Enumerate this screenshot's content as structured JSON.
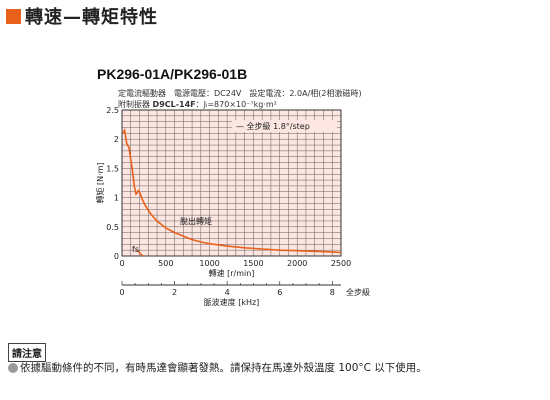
{
  "heading": {
    "text": "轉速—轉矩特性",
    "accent_color": "#e8611a"
  },
  "model": "PK296-01A/PK296-01B",
  "conditions": {
    "line1": "定電流驅動器　電源電壓：DC24V　設定電流：2.0A/相(2相激磁時)",
    "line2_prefix": "附制振器 ",
    "line2_model": "D9CL-14F",
    "line2_suffix": "：Jₗ=870×10⁻⁷kg·m²"
  },
  "chart_data": {
    "type": "line",
    "ylabel": "轉矩 [N·m]",
    "xlabel": "轉速 [r/min]",
    "x2label": "脈波速度 [kHz]",
    "x2unit_label": "全步級",
    "xlim": [
      0,
      2500
    ],
    "ylim": [
      0,
      2.5
    ],
    "x2lim": [
      0,
      8.33
    ],
    "xticks": [
      0,
      500,
      1000,
      1500,
      2000,
      2500
    ],
    "yticks": [
      0,
      0.5,
      1,
      1.5,
      2,
      2.5
    ],
    "x2ticks": [
      0,
      2,
      4,
      6,
      8
    ],
    "grid": true,
    "background_color": "#fbe6e2",
    "line_color": "#e8611a",
    "legend": "— 全步級 1.8°/step",
    "legend_position": "top-right",
    "annotation_pullout": "脫出轉矩",
    "annotation_fs": "fs",
    "series": [
      {
        "name": "全步級 1.8°/step",
        "x": [
          10,
          30,
          55,
          80,
          100,
          120,
          140,
          160,
          175,
          185,
          200,
          230,
          260,
          300,
          350,
          400,
          500,
          600,
          700,
          800,
          900,
          1000,
          1200,
          1400,
          1600,
          1800,
          2000,
          2200,
          2400,
          2500
        ],
        "y": [
          2.1,
          2.15,
          1.92,
          1.86,
          1.65,
          1.45,
          1.2,
          1.06,
          1.08,
          1.12,
          1.1,
          0.98,
          0.88,
          0.78,
          0.68,
          0.6,
          0.48,
          0.4,
          0.34,
          0.28,
          0.24,
          0.21,
          0.17,
          0.14,
          0.12,
          0.1,
          0.09,
          0.08,
          0.07,
          0.06
        ]
      }
    ],
    "fs_line": {
      "x": [
        170,
        240
      ],
      "y": [
        0.1,
        0
      ]
    }
  },
  "notice": {
    "label": "請注意",
    "text": "依據驅動條件的不同，有時馬達會顯著發熱。請保持在馬達外殼溫度 100°C 以下使用。"
  }
}
